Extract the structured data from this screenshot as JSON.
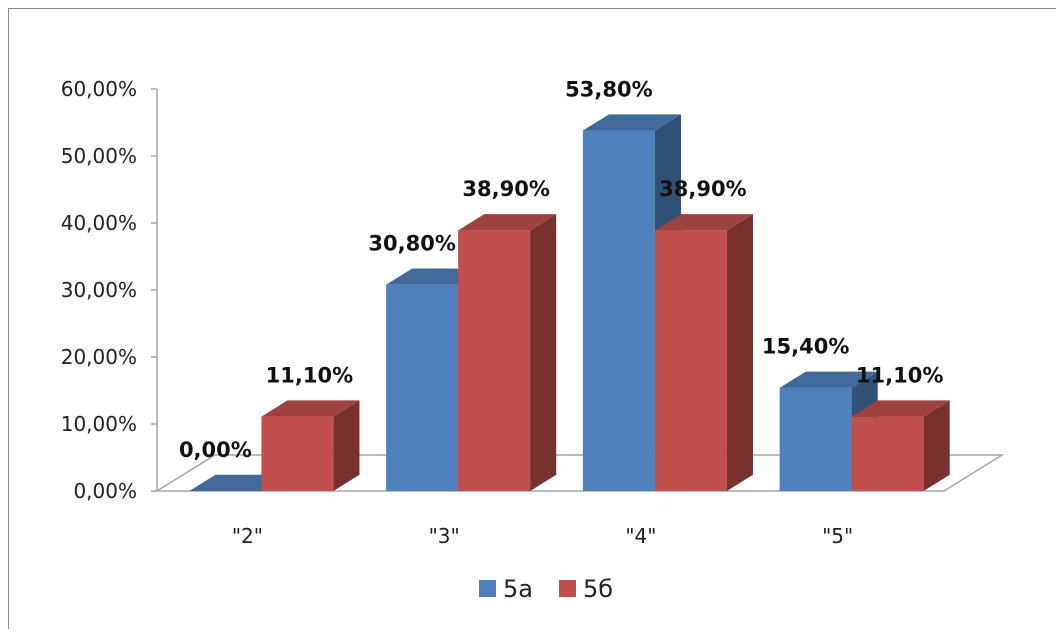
{
  "chart_data": {
    "type": "bar",
    "three_d": true,
    "categories": [
      "\"2\"",
      "\"3\"",
      "\"4\"",
      "\"5\""
    ],
    "series": [
      {
        "name": "5а",
        "values": [
          0.0,
          30.8,
          53.8,
          15.4
        ],
        "labels": [
          "0,00%",
          "30,80%",
          "53,80%",
          "15,40%"
        ],
        "color": "#4f81bd"
      },
      {
        "name": "5б",
        "values": [
          11.1,
          38.9,
          38.9,
          11.1
        ],
        "labels": [
          "11,10%",
          "38,90%",
          "38,90%",
          "11,10%"
        ],
        "color": "#c0504d"
      }
    ],
    "ylim": [
      0,
      60
    ],
    "yticks": [
      0,
      10,
      20,
      30,
      40,
      50,
      60
    ],
    "ytick_labels": [
      "0,00%",
      "10,00%",
      "20,00%",
      "30,00%",
      "40,00%",
      "50,00%",
      "60,00%"
    ],
    "grid": false,
    "legend": "bottom"
  }
}
